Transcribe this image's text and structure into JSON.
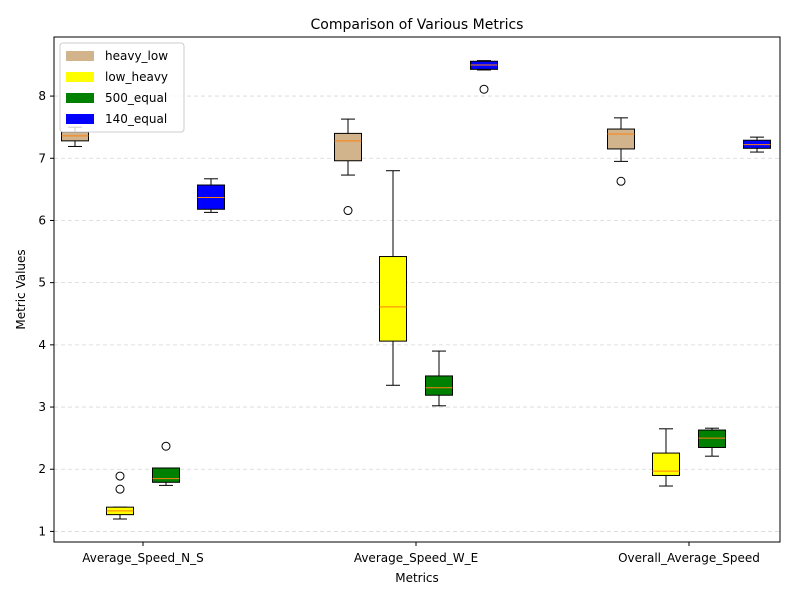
{
  "chart_data": {
    "type": "box",
    "title": "Comparison of Various Metrics",
    "xlabel": "Metrics",
    "ylabel": "Metric Values",
    "categories": [
      "Average_Speed_N_S",
      "Average_Speed_W_E",
      "Overall_Average_Speed"
    ],
    "ylim": [
      0.83,
      8.95
    ],
    "yticks": [
      1,
      2,
      3,
      4,
      5,
      6,
      7,
      8
    ],
    "grid": "y-dashed",
    "legend_position": "upper-left",
    "median_color": "#ff7f0e",
    "series": [
      {
        "name": "heavy_low",
        "color": "#d2b48c",
        "boxes": [
          {
            "whislo": 7.19,
            "q1": 7.28,
            "med": 7.36,
            "q3": 7.42,
            "whishi": 7.5,
            "fliers": []
          },
          {
            "whislo": 6.73,
            "q1": 6.96,
            "med": 7.28,
            "q3": 7.4,
            "whishi": 7.63,
            "fliers": [
              6.16
            ]
          },
          {
            "whislo": 6.95,
            "q1": 7.15,
            "med": 7.39,
            "q3": 7.47,
            "whishi": 7.65,
            "fliers": [
              6.63
            ]
          }
        ]
      },
      {
        "name": "low_heavy",
        "color": "#ffff00",
        "boxes": [
          {
            "whislo": 1.2,
            "q1": 1.27,
            "med": 1.33,
            "q3": 1.39,
            "whishi": 1.39,
            "fliers": [
              1.89,
              1.68
            ]
          },
          {
            "whislo": 3.35,
            "q1": 4.06,
            "med": 4.61,
            "q3": 5.42,
            "whishi": 6.8,
            "fliers": []
          },
          {
            "whislo": 1.73,
            "q1": 1.9,
            "med": 1.97,
            "q3": 2.26,
            "whishi": 2.65,
            "fliers": []
          }
        ]
      },
      {
        "name": "500_equal",
        "color": "#008000",
        "boxes": [
          {
            "whislo": 1.74,
            "q1": 1.79,
            "med": 1.85,
            "q3": 2.02,
            "whishi": 2.02,
            "fliers": [
              2.37
            ]
          },
          {
            "whislo": 3.02,
            "q1": 3.19,
            "med": 3.31,
            "q3": 3.5,
            "whishi": 3.9,
            "fliers": []
          },
          {
            "whislo": 2.21,
            "q1": 2.35,
            "med": 2.5,
            "q3": 2.63,
            "whishi": 2.66,
            "fliers": []
          }
        ]
      },
      {
        "name": "140_equal",
        "color": "#0000ff",
        "boxes": [
          {
            "whislo": 6.13,
            "q1": 6.18,
            "med": 6.37,
            "q3": 6.57,
            "whishi": 6.67,
            "fliers": []
          },
          {
            "whislo": 8.42,
            "q1": 8.43,
            "med": 8.5,
            "q3": 8.56,
            "whishi": 8.57,
            "fliers": [
              8.11
            ]
          },
          {
            "whislo": 7.1,
            "q1": 7.16,
            "med": 7.22,
            "q3": 7.29,
            "whishi": 7.34,
            "fliers": []
          }
        ]
      }
    ]
  }
}
